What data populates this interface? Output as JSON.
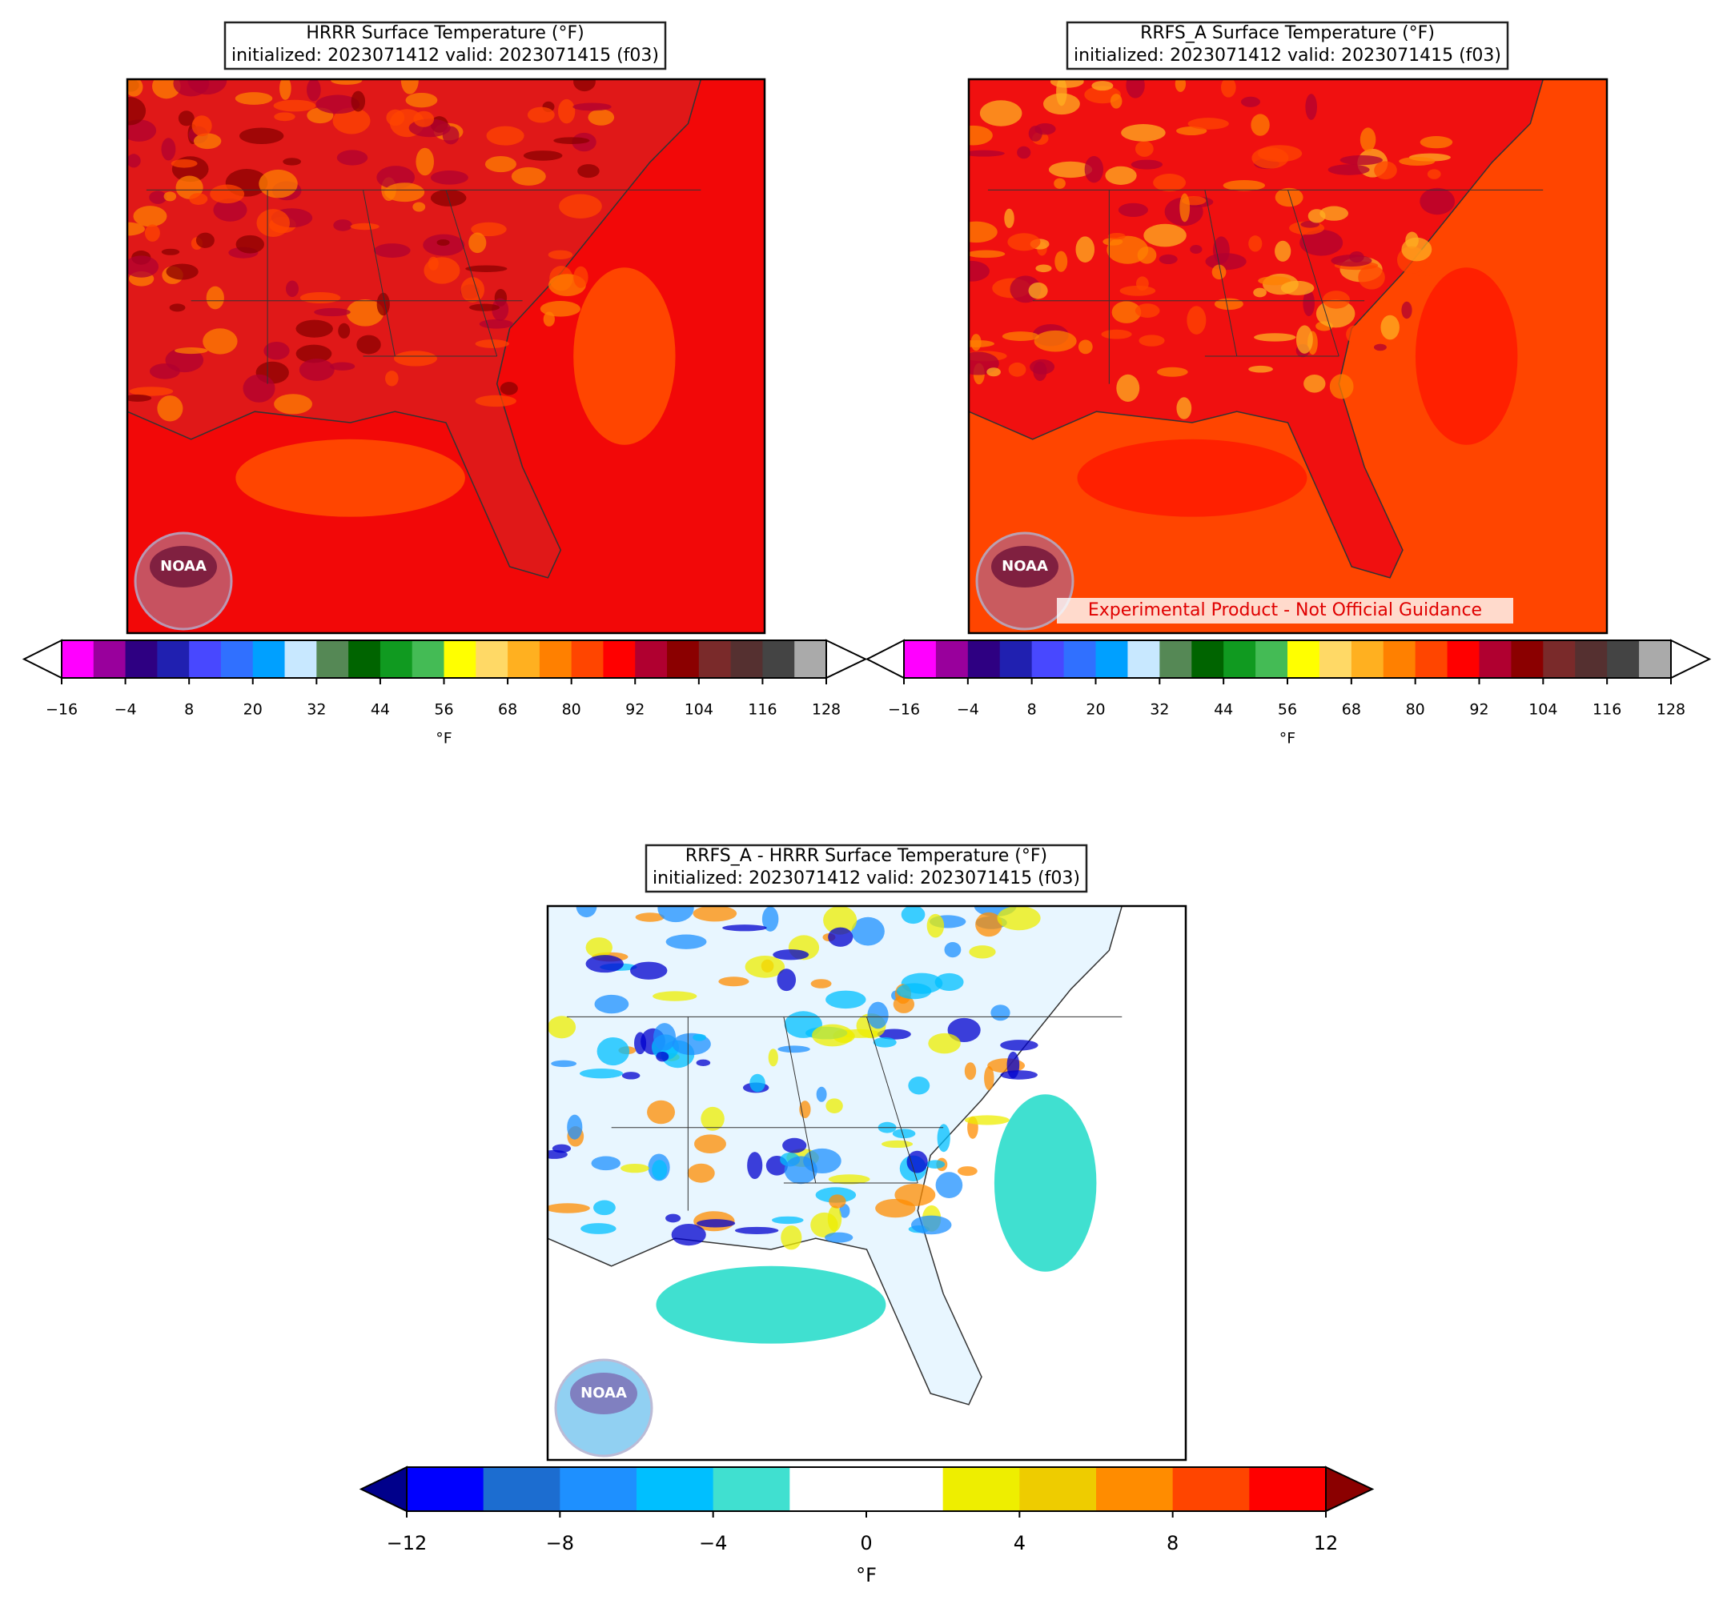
{
  "panels": [
    {
      "title": "HRRR Surface Temperature (°F)",
      "subtitle": "initialized: 2023071412 valid: 2023071415 (f03)",
      "logo_text": "NOAA",
      "colorbar": {
        "lim": [
          -16,
          128
        ],
        "label": "°F",
        "ticks": [
          {
            "value": -16,
            "label": "−16"
          },
          {
            "value": -4,
            "label": "−4"
          },
          8,
          20,
          32,
          44,
          56,
          68,
          80,
          92,
          104,
          116,
          128
        ],
        "colors": [
          "#ff00ff",
          "#99009c",
          "#2e0082",
          "#2020b0",
          "#4848ff",
          "#3070ff",
          "#00a0ff",
          "#c8e8ff",
          "#558855",
          "#006400",
          "#109a20",
          "#44bb55",
          "#ffff00",
          "#ffd966",
          "#ffb020",
          "#ff8000",
          "#ff4500",
          "#ff0000",
          "#b00030",
          "#8b0000",
          "#7a2a2a",
          "#553030",
          "#444444",
          "#aaaaaa"
        ],
        "extend_colors": [
          "#ffffff",
          "#ffffff"
        ]
      }
    },
    {
      "title": "RRFS_A Surface Temperature (°F)",
      "subtitle": "initialized: 2023071412 valid: 2023071415 (f03)",
      "logo_text": "NOAA",
      "note": "Experimental Product - Not Official Guidance",
      "colorbar": {
        "lim": [
          -16,
          128
        ],
        "label": "°F",
        "ticks": [
          {
            "value": -16,
            "label": "−16"
          },
          {
            "value": -4,
            "label": "−4"
          },
          8,
          20,
          32,
          44,
          56,
          68,
          80,
          92,
          104,
          116,
          128
        ],
        "colors": [
          "#ff00ff",
          "#99009c",
          "#2e0082",
          "#2020b0",
          "#4848ff",
          "#3070ff",
          "#00a0ff",
          "#c8e8ff",
          "#558855",
          "#006400",
          "#109a20",
          "#44bb55",
          "#ffff00",
          "#ffd966",
          "#ffb020",
          "#ff8000",
          "#ff4500",
          "#ff0000",
          "#b00030",
          "#8b0000",
          "#7a2a2a",
          "#553030",
          "#444444",
          "#aaaaaa"
        ],
        "extend_colors": [
          "#ffffff",
          "#ffffff"
        ]
      }
    },
    {
      "title": "RRFS_A - HRRR Surface Temperature (°F)",
      "subtitle": "initialized: 2023071412 valid: 2023071415 (f03)",
      "logo_text": "NOAA",
      "colorbar": {
        "lim": [
          -12,
          12
        ],
        "label": "°F",
        "ticks": [
          {
            "value": -12,
            "label": "−12"
          },
          {
            "value": -8,
            "label": "−8"
          },
          {
            "value": -4,
            "label": "−4"
          },
          0,
          4,
          8,
          12
        ],
        "colors": [
          "#0000ff",
          "#1c6dd0",
          "#1e90ff",
          "#00bfff",
          "#40e0d0",
          "#ffffff",
          "#ffffff",
          "#eeee00",
          "#eecc00",
          "#ff8c00",
          "#ff4500",
          "#ff0000"
        ],
        "extend_colors": [
          "#00008b",
          "#8b0000"
        ]
      }
    }
  ]
}
